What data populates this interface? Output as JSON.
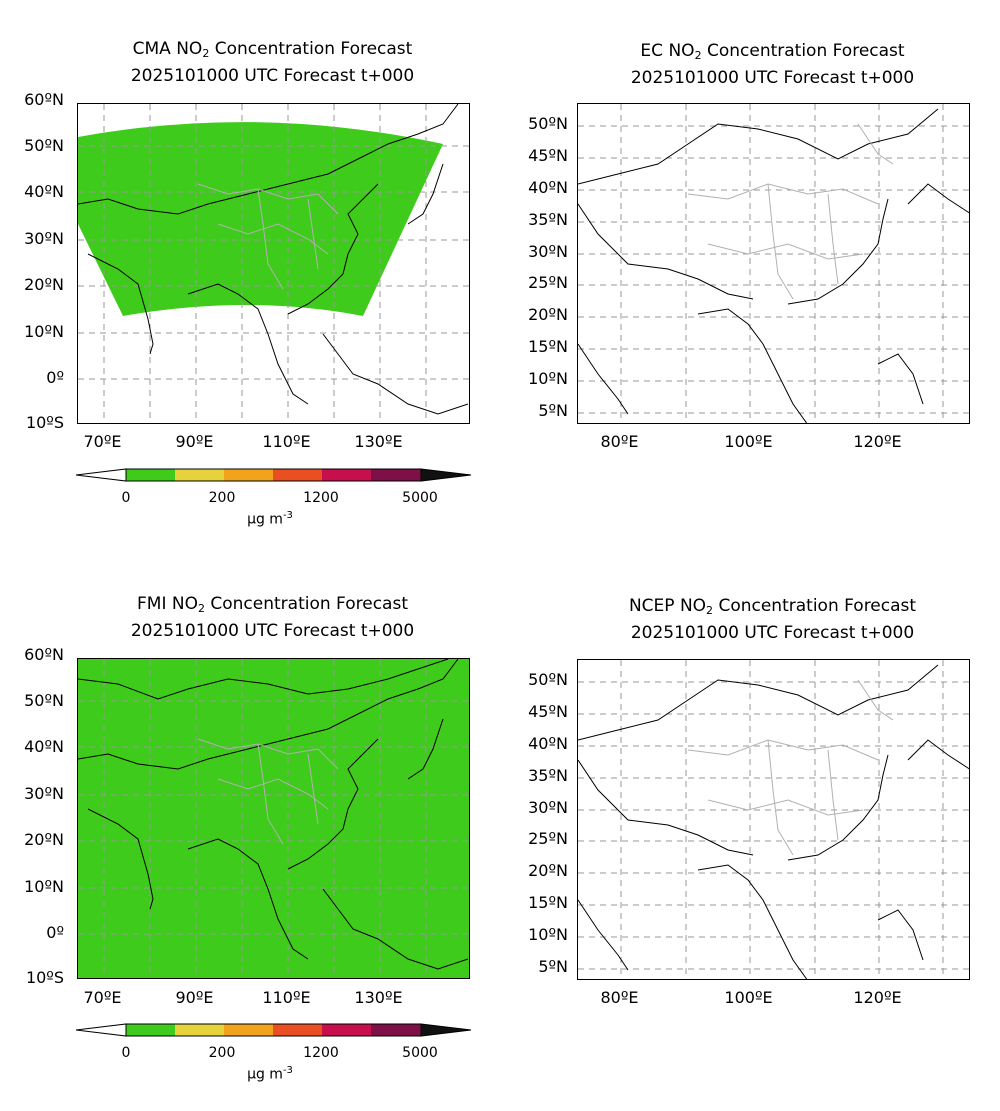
{
  "panels": [
    {
      "id": "cma",
      "model": "CMA",
      "species": "NO",
      "species_sub": "2",
      "title_suffix": "Concentration Forecast",
      "subtitle": "2025101000 UTC Forecast t+000",
      "lat_labels": [
        "60ºN",
        "50ºN",
        "40ºN",
        "30ºN",
        "20ºN",
        "10ºN",
        "0º",
        "10ºS"
      ],
      "lon_labels": [
        "70ºE",
        "90ºE",
        "110ºE",
        "130ºE"
      ],
      "has_colorbar": true
    },
    {
      "id": "ec",
      "model": "EC",
      "species": "NO",
      "species_sub": "2",
      "title_suffix": "Concentration Forecast",
      "subtitle": "2025101000 UTC Forecast t+000",
      "lat_labels": [
        "50ºN",
        "45ºN",
        "40ºN",
        "35ºN",
        "30ºN",
        "25ºN",
        "20ºN",
        "15ºN",
        "10ºN",
        "5ºN"
      ],
      "lon_labels": [
        "80ºE",
        "100ºE",
        "120ºE"
      ],
      "has_colorbar": false
    },
    {
      "id": "fmi",
      "model": "FMI",
      "species": "NO",
      "species_sub": "2",
      "title_suffix": "Concentration Forecast",
      "subtitle": "2025101000 UTC Forecast t+000",
      "lat_labels": [
        "60ºN",
        "50ºN",
        "40ºN",
        "30ºN",
        "20ºN",
        "10ºN",
        "0º",
        "10ºS"
      ],
      "lon_labels": [
        "70ºE",
        "90ºE",
        "110ºE",
        "130ºE"
      ],
      "has_colorbar": true
    },
    {
      "id": "ncep",
      "model": "NCEP",
      "species": "NO",
      "species_sub": "2",
      "title_suffix": "Concentration Forecast",
      "subtitle": "2025101000 UTC Forecast t+000",
      "lat_labels": [
        "50ºN",
        "45ºN",
        "40ºN",
        "35ºN",
        "30ºN",
        "25ºN",
        "20ºN",
        "15ºN",
        "10ºN",
        "5ºN"
      ],
      "lon_labels": [
        "80ºE",
        "100ºE",
        "120ºE"
      ],
      "has_colorbar": false
    }
  ],
  "colorbar": {
    "ticks": [
      "0",
      "200",
      "1200",
      "5000"
    ],
    "unit": "µg m",
    "unit_sup": "-3",
    "colors": [
      "#3fcb1b",
      "#e6d23b",
      "#f2a31c",
      "#ea4f22",
      "#c70f4e",
      "#7e1048",
      "#111111"
    ],
    "field_color": "#3fcb1b"
  }
}
